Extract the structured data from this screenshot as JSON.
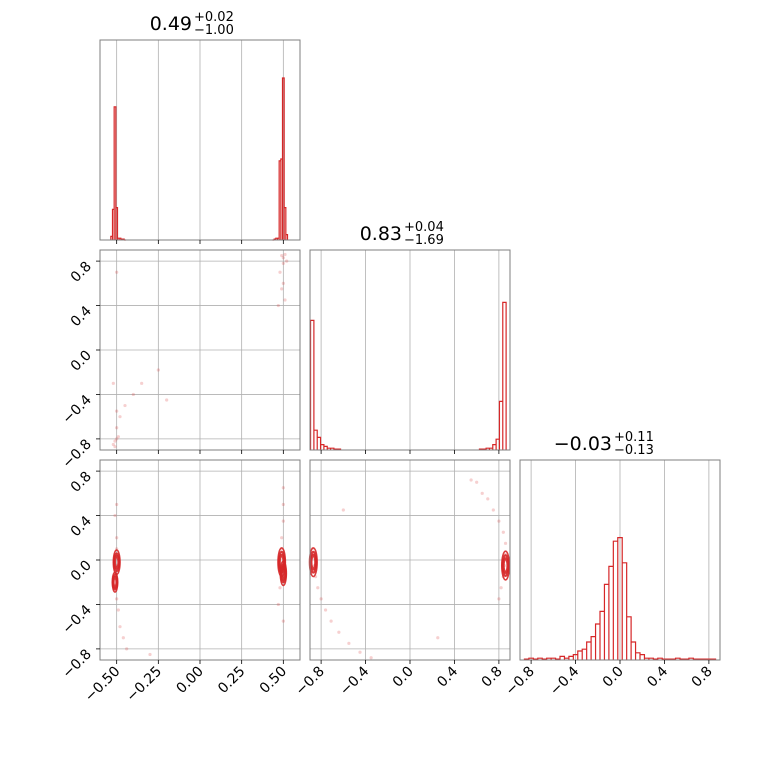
{
  "chart_data": {
    "type": "corner",
    "color": "#d62728",
    "grid": true,
    "params": [
      {
        "range": [
          -0.6,
          0.6
        ],
        "ticks": [
          -0.5,
          -0.25,
          0.0,
          0.25,
          0.5
        ],
        "tick_labels": [
          "−0.50",
          "−0.25",
          "0.00",
          "0.25",
          "0.50"
        ],
        "title": {
          "median": "0.49",
          "plus": "+0.02",
          "minus": "−1.00"
        }
      },
      {
        "range": [
          -0.9,
          0.9
        ],
        "ticks": [
          -0.8,
          -0.4,
          0.0,
          0.4,
          0.8
        ],
        "tick_labels": [
          "−0.8",
          "−0.4",
          "0.0",
          "0.4",
          "0.8"
        ],
        "title": {
          "median": "0.83",
          "plus": "+0.04",
          "minus": "−1.69"
        }
      },
      {
        "range": [
          -0.9,
          0.9
        ],
        "ticks": [
          -0.8,
          -0.4,
          0.0,
          0.4,
          0.8
        ],
        "tick_labels": [
          "−0.8",
          "−0.4",
          "0.0",
          "0.4",
          "0.8"
        ],
        "title": {
          "median": "−0.03",
          "plus": "+0.11",
          "minus": "−0.13"
        }
      }
    ],
    "histograms": [
      {
        "param": 0,
        "bins": [
          [
            -0.53,
            0.02
          ],
          [
            -0.52,
            0.17
          ],
          [
            -0.51,
            0.74
          ],
          [
            -0.5,
            0.18
          ],
          [
            -0.49,
            0.01
          ],
          [
            -0.48,
            0.01
          ],
          [
            -0.47,
            0.005
          ],
          [
            -0.46,
            0.005
          ],
          [
            -0.45,
            0.0
          ],
          [
            0.44,
            0.0
          ],
          [
            0.45,
            0.005
          ],
          [
            0.46,
            0.01
          ],
          [
            0.47,
            0.01
          ],
          [
            0.48,
            0.44
          ],
          [
            0.49,
            0.45
          ],
          [
            0.5,
            0.9
          ],
          [
            0.51,
            0.18
          ],
          [
            0.52,
            0.03
          ]
        ]
      },
      {
        "param": 1,
        "bins": [
          [
            -0.88,
            0.72
          ],
          [
            -0.85,
            0.11
          ],
          [
            -0.82,
            0.07
          ],
          [
            -0.79,
            0.03
          ],
          [
            -0.76,
            0.02
          ],
          [
            -0.73,
            0.01
          ],
          [
            -0.7,
            0.01
          ],
          [
            -0.67,
            0.005
          ],
          [
            -0.64,
            0.005
          ],
          [
            0.64,
            0.005
          ],
          [
            0.67,
            0.005
          ],
          [
            0.7,
            0.01
          ],
          [
            0.73,
            0.01
          ],
          [
            0.76,
            0.03
          ],
          [
            0.79,
            0.06
          ],
          [
            0.82,
            0.27
          ],
          [
            0.85,
            0.82
          ]
        ]
      },
      {
        "param": 2,
        "bins": [
          [
            -0.84,
            0.005
          ],
          [
            -0.8,
            0.01
          ],
          [
            -0.76,
            0.005
          ],
          [
            -0.72,
            0.01
          ],
          [
            -0.68,
            0.005
          ],
          [
            -0.64,
            0.01
          ],
          [
            -0.6,
            0.01
          ],
          [
            -0.56,
            0.005
          ],
          [
            -0.52,
            0.02
          ],
          [
            -0.48,
            0.01
          ],
          [
            -0.44,
            0.02
          ],
          [
            -0.4,
            0.03
          ],
          [
            -0.36,
            0.05
          ],
          [
            -0.32,
            0.06
          ],
          [
            -0.28,
            0.1
          ],
          [
            -0.24,
            0.13
          ],
          [
            -0.2,
            0.2
          ],
          [
            -0.16,
            0.27
          ],
          [
            -0.12,
            0.42
          ],
          [
            -0.08,
            0.52
          ],
          [
            -0.04,
            0.66
          ],
          [
            0.0,
            0.68
          ],
          [
            0.04,
            0.54
          ],
          [
            0.08,
            0.24
          ],
          [
            0.12,
            0.1
          ],
          [
            0.16,
            0.04
          ],
          [
            0.2,
            0.03
          ],
          [
            0.24,
            0.01
          ],
          [
            0.28,
            0.01
          ],
          [
            0.32,
            0.005
          ],
          [
            0.36,
            0.01
          ],
          [
            0.4,
            0.005
          ],
          [
            0.44,
            0.005
          ],
          [
            0.48,
            0.005
          ],
          [
            0.52,
            0.01
          ],
          [
            0.56,
            0.005
          ],
          [
            0.6,
            0.005
          ],
          [
            0.64,
            0.01
          ],
          [
            0.68,
            0.005
          ],
          [
            0.72,
            0.005
          ],
          [
            0.76,
            0.005
          ],
          [
            0.8,
            0.005
          ],
          [
            0.84,
            0.005
          ]
        ]
      }
    ],
    "scatter": [
      {
        "xparam": 0,
        "yparam": 1,
        "points": [
          [
            -0.51,
            -0.82
          ],
          [
            -0.52,
            -0.85
          ],
          [
            -0.5,
            -0.8
          ],
          [
            -0.51,
            -0.87
          ],
          [
            -0.49,
            -0.78
          ],
          [
            -0.5,
            -0.7
          ],
          [
            -0.48,
            -0.6
          ],
          [
            -0.45,
            -0.5
          ],
          [
            -0.4,
            -0.4
          ],
          [
            -0.35,
            -0.3
          ],
          [
            -0.25,
            -0.18
          ],
          [
            -0.2,
            -0.45
          ],
          [
            -0.5,
            -0.55
          ],
          [
            -0.52,
            -0.3
          ],
          [
            -0.5,
            0.7
          ],
          [
            0.5,
            0.83
          ],
          [
            0.51,
            0.86
          ],
          [
            0.52,
            0.8
          ],
          [
            0.49,
            0.85
          ],
          [
            0.5,
            0.78
          ],
          [
            0.48,
            0.7
          ],
          [
            0.49,
            0.55
          ],
          [
            0.47,
            0.4
          ],
          [
            0.5,
            0.6
          ],
          [
            0.51,
            0.45
          ]
        ]
      },
      {
        "xparam": 0,
        "yparam": 2,
        "points": [
          [
            -0.5,
            0.1
          ],
          [
            -0.51,
            0.05
          ],
          [
            -0.5,
            -0.05
          ],
          [
            -0.52,
            -0.15
          ],
          [
            -0.51,
            -0.25
          ],
          [
            -0.5,
            -0.35
          ],
          [
            -0.49,
            -0.45
          ],
          [
            -0.48,
            -0.6
          ],
          [
            -0.46,
            -0.7
          ],
          [
            -0.44,
            -0.8
          ],
          [
            -0.5,
            0.2
          ],
          [
            -0.51,
            0.4
          ],
          [
            -0.5,
            0.5
          ],
          [
            -0.3,
            -0.85
          ],
          [
            0.49,
            0.1
          ],
          [
            0.5,
            0.05
          ],
          [
            0.51,
            -0.05
          ],
          [
            0.5,
            -0.15
          ],
          [
            0.48,
            -0.25
          ],
          [
            0.49,
            0.2
          ],
          [
            0.5,
            0.35
          ],
          [
            0.5,
            0.5
          ],
          [
            0.5,
            0.65
          ],
          [
            0.47,
            -0.4
          ],
          [
            0.5,
            -0.55
          ]
        ]
      },
      {
        "xparam": 1,
        "yparam": 2,
        "points": [
          [
            -0.87,
            0.05
          ],
          [
            -0.86,
            -0.05
          ],
          [
            -0.85,
            -0.15
          ],
          [
            -0.83,
            -0.25
          ],
          [
            -0.8,
            -0.35
          ],
          [
            -0.76,
            -0.45
          ],
          [
            -0.71,
            -0.55
          ],
          [
            -0.64,
            -0.65
          ],
          [
            -0.55,
            -0.75
          ],
          [
            -0.45,
            -0.83
          ],
          [
            -0.35,
            -0.88
          ],
          [
            -0.88,
            0.1
          ],
          [
            -0.6,
            0.45
          ],
          [
            0.25,
            -0.7
          ],
          [
            0.86,
            0.05
          ],
          [
            0.85,
            -0.05
          ],
          [
            0.84,
            -0.15
          ],
          [
            0.82,
            -0.25
          ],
          [
            0.8,
            -0.35
          ],
          [
            0.86,
            0.15
          ],
          [
            0.84,
            0.25
          ],
          [
            0.8,
            0.35
          ],
          [
            0.75,
            0.45
          ],
          [
            0.65,
            0.6
          ],
          [
            0.55,
            0.72
          ],
          [
            0.6,
            0.7
          ],
          [
            0.7,
            0.55
          ]
        ]
      }
    ],
    "contours": [
      {
        "xparam": 0,
        "yparam": 2,
        "levels": [
          [
            -0.5,
            -0.02,
            0.014,
            0.1
          ],
          [
            -0.51,
            -0.2,
            0.01,
            0.08
          ],
          [
            0.49,
            -0.02,
            0.016,
            0.12
          ],
          [
            0.5,
            -0.12,
            0.012,
            0.1
          ]
        ]
      },
      {
        "xparam": 1,
        "yparam": 2,
        "levels": [
          [
            -0.87,
            -0.02,
            0.025,
            0.12
          ],
          [
            0.86,
            -0.05,
            0.025,
            0.12
          ]
        ]
      }
    ]
  }
}
